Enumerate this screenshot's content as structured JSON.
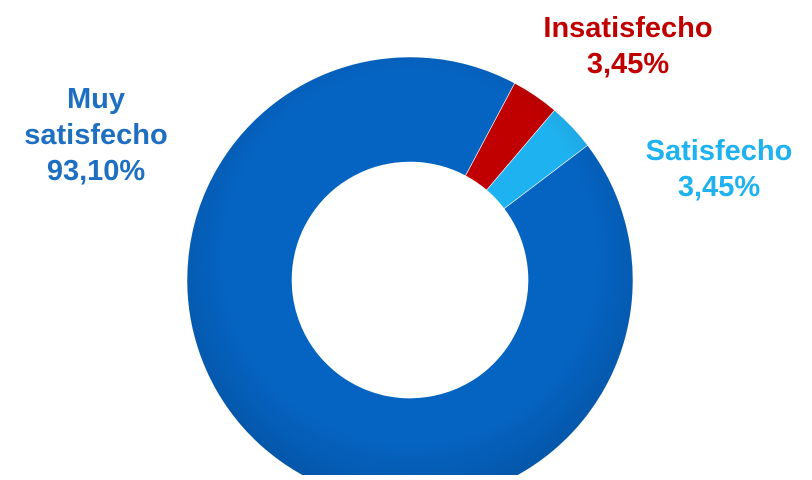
{
  "chart_data": {
    "type": "pie",
    "variant": "donut",
    "title": "",
    "slices": [
      {
        "name": "Insatisfecho",
        "value": 3.45,
        "value_label": "3,45%",
        "color": "#C00000"
      },
      {
        "name": "Satisfecho",
        "value": 3.45,
        "value_label": "3,45%",
        "color": "#1FB2F0"
      },
      {
        "name": "Muy satisfecho",
        "value": 93.1,
        "value_label": "93,10%",
        "color": "#0563C1"
      }
    ],
    "start_angle_deg": 28,
    "direction": "clockwise",
    "legend": "none",
    "data_labels": "outside, category name and percentage"
  }
}
